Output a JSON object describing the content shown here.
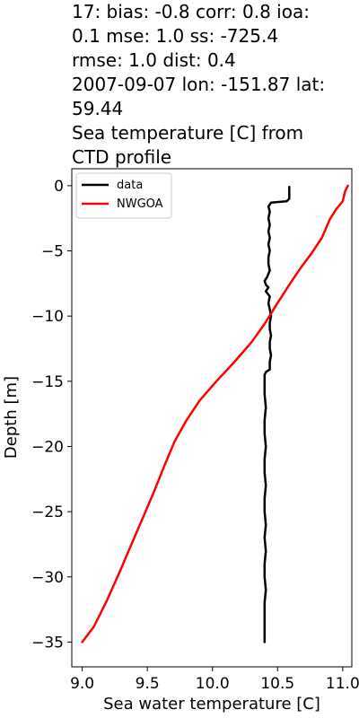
{
  "title_lines": [
    "17: bias: -0.8  corr: 0.8  ioa:",
    "0.1  mse: 1.0  ss: -725.4",
    "rmse: 1.0  dist: 0.4",
    "2007-09-07 lon: -151.87 lat:",
    "59.44",
    "Sea temperature [C] from",
    "CTD profile"
  ],
  "chart_data": {
    "type": "line",
    "xlabel": "Sea water temperature [C]",
    "ylabel": "Depth [m]",
    "xlim": [
      8.92,
      11.07
    ],
    "ylim": [
      -36.9,
      1.3
    ],
    "xticks": [
      9.0,
      9.5,
      10.0,
      10.5,
      11.0
    ],
    "xtick_labels": [
      "9.0",
      "9.5",
      "10.0",
      "10.5",
      "11.0"
    ],
    "yticks": [
      0,
      -5,
      -10,
      -15,
      -20,
      -25,
      -30,
      -35
    ],
    "ytick_labels": [
      "0",
      "−5",
      "−10",
      "−15",
      "−20",
      "−25",
      "−30",
      "−35"
    ],
    "grid": false,
    "legend_position": "top-left",
    "series": [
      {
        "name": "data",
        "color": "#000000",
        "points": [
          [
            10.59,
            -0.1
          ],
          [
            10.59,
            -1.0
          ],
          [
            10.57,
            -1.2
          ],
          [
            10.45,
            -1.3
          ],
          [
            10.43,
            -1.6
          ],
          [
            10.44,
            -2.0
          ],
          [
            10.43,
            -2.5
          ],
          [
            10.44,
            -3.0
          ],
          [
            10.43,
            -3.5
          ],
          [
            10.44,
            -4.0
          ],
          [
            10.43,
            -4.5
          ],
          [
            10.44,
            -5.0
          ],
          [
            10.43,
            -5.5
          ],
          [
            10.43,
            -6.0
          ],
          [
            10.44,
            -6.5
          ],
          [
            10.42,
            -7.0
          ],
          [
            10.4,
            -7.3
          ],
          [
            10.41,
            -7.6
          ],
          [
            10.43,
            -7.8
          ],
          [
            10.41,
            -8.1
          ],
          [
            10.44,
            -8.5
          ],
          [
            10.43,
            -9.0
          ],
          [
            10.44,
            -9.5
          ],
          [
            10.45,
            -10.0
          ],
          [
            10.44,
            -10.5
          ],
          [
            10.44,
            -11.0
          ],
          [
            10.45,
            -11.5
          ],
          [
            10.44,
            -12.0
          ],
          [
            10.44,
            -12.5
          ],
          [
            10.45,
            -13.0
          ],
          [
            10.44,
            -13.5
          ],
          [
            10.44,
            -14.1
          ],
          [
            10.41,
            -14.3
          ],
          [
            10.4,
            -14.5
          ],
          [
            10.4,
            -15.0
          ],
          [
            10.4,
            -16.0
          ],
          [
            10.41,
            -17.0
          ],
          [
            10.4,
            -18.0
          ],
          [
            10.4,
            -19.0
          ],
          [
            10.41,
            -20.0
          ],
          [
            10.4,
            -21.0
          ],
          [
            10.4,
            -22.0
          ],
          [
            10.41,
            -23.0
          ],
          [
            10.4,
            -24.0
          ],
          [
            10.4,
            -25.0
          ],
          [
            10.41,
            -26.0
          ],
          [
            10.4,
            -27.0
          ],
          [
            10.41,
            -28.0
          ],
          [
            10.4,
            -29.0
          ],
          [
            10.4,
            -30.0
          ],
          [
            10.41,
            -31.0
          ],
          [
            10.4,
            -32.0
          ],
          [
            10.4,
            -33.0
          ],
          [
            10.4,
            -34.0
          ],
          [
            10.4,
            -35.0
          ]
        ]
      },
      {
        "name": "NWGOA",
        "color": "#ff0000",
        "points": [
          [
            11.04,
            0.0
          ],
          [
            11.02,
            -0.4
          ],
          [
            11.0,
            -1.2
          ],
          [
            10.95,
            -1.8
          ],
          [
            10.9,
            -2.6
          ],
          [
            10.84,
            -4.0
          ],
          [
            10.76,
            -5.2
          ],
          [
            10.67,
            -6.4
          ],
          [
            10.59,
            -7.6
          ],
          [
            10.5,
            -9.0
          ],
          [
            10.4,
            -10.6
          ],
          [
            10.3,
            -12.0
          ],
          [
            10.17,
            -13.5
          ],
          [
            10.03,
            -15.0
          ],
          [
            9.9,
            -16.5
          ],
          [
            9.8,
            -18.0
          ],
          [
            9.71,
            -19.6
          ],
          [
            9.63,
            -21.5
          ],
          [
            9.55,
            -23.5
          ],
          [
            9.46,
            -25.6
          ],
          [
            9.37,
            -27.7
          ],
          [
            9.28,
            -29.8
          ],
          [
            9.19,
            -31.8
          ],
          [
            9.09,
            -33.8
          ],
          [
            9.0,
            -35.0
          ]
        ]
      }
    ]
  }
}
